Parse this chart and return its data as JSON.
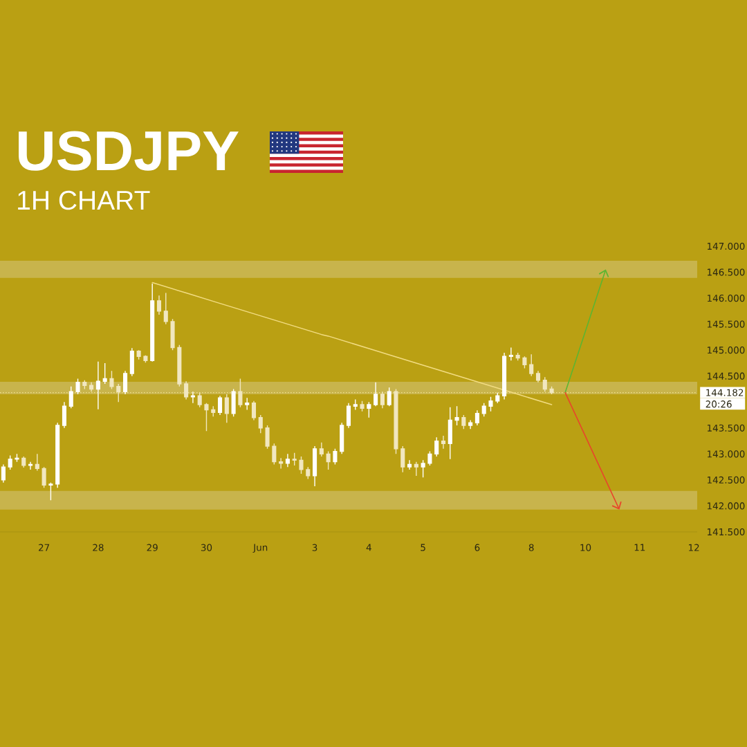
{
  "chart_data": {
    "type": "candlestick",
    "title": "USDJPY",
    "subtitle": "1H CHART",
    "categories": [
      null,
      null,
      null,
      null,
      null,
      null,
      "27",
      null,
      null,
      null,
      null,
      null,
      null,
      null,
      "28",
      null,
      null,
      null,
      null,
      null,
      null,
      null,
      "29",
      null,
      null,
      null,
      null,
      null,
      null,
      null,
      "30",
      null,
      null,
      null,
      null,
      null,
      null,
      null,
      "Jun",
      null,
      null,
      null,
      null,
      null,
      null,
      null,
      "3",
      null,
      null,
      null,
      null,
      null,
      null,
      null,
      "4",
      null,
      null,
      null,
      null,
      null,
      null,
      null,
      "5",
      null,
      null,
      null,
      null,
      null,
      null,
      null,
      "6",
      null,
      null,
      null,
      null,
      null,
      null,
      null,
      "8",
      null,
      null,
      null,
      null,
      null,
      null,
      null,
      "10",
      null,
      null,
      null,
      null,
      null,
      null,
      null,
      "11",
      null,
      null,
      null,
      null,
      null,
      null,
      null,
      "12"
    ],
    "ohlc": [
      [
        142.5,
        142.8,
        142.45,
        142.75
      ],
      [
        142.75,
        142.97,
        142.7,
        142.9
      ],
      [
        142.9,
        143.0,
        142.85,
        142.92
      ],
      [
        142.92,
        142.95,
        142.74,
        142.78
      ],
      [
        142.78,
        142.85,
        142.7,
        142.8
      ],
      [
        142.8,
        143.0,
        142.68,
        142.72
      ],
      [
        142.72,
        142.75,
        142.35,
        142.4
      ],
      [
        142.4,
        142.45,
        142.11,
        142.42
      ],
      [
        142.42,
        143.6,
        142.35,
        143.55
      ],
      [
        143.55,
        144.0,
        143.5,
        143.92
      ],
      [
        143.92,
        144.3,
        143.88,
        144.2
      ],
      [
        144.2,
        144.45,
        144.15,
        144.38
      ],
      [
        144.38,
        144.42,
        144.25,
        144.32
      ],
      [
        144.32,
        144.38,
        144.2,
        144.25
      ],
      [
        144.25,
        144.78,
        143.86,
        144.4
      ],
      [
        144.4,
        144.75,
        144.35,
        144.45
      ],
      [
        144.45,
        144.6,
        144.25,
        144.3
      ],
      [
        144.3,
        144.35,
        144.0,
        144.2
      ],
      [
        144.2,
        144.6,
        144.15,
        144.55
      ],
      [
        144.55,
        145.04,
        144.5,
        144.98
      ],
      [
        144.98,
        145.0,
        144.82,
        144.88
      ],
      [
        144.88,
        144.9,
        144.76,
        144.8
      ],
      [
        144.8,
        146.28,
        144.78,
        145.95
      ],
      [
        145.95,
        146.05,
        145.68,
        145.75
      ],
      [
        145.75,
        146.1,
        145.5,
        145.55
      ],
      [
        145.55,
        145.6,
        145.0,
        145.05
      ],
      [
        145.05,
        145.1,
        144.3,
        144.35
      ],
      [
        144.35,
        144.4,
        144.05,
        144.1
      ],
      [
        144.1,
        144.2,
        143.98,
        144.12
      ],
      [
        144.12,
        144.18,
        143.9,
        143.95
      ],
      [
        143.95,
        143.98,
        143.44,
        143.85
      ],
      [
        143.85,
        143.92,
        143.72,
        143.8
      ],
      [
        143.8,
        144.12,
        143.75,
        144.08
      ],
      [
        144.08,
        144.15,
        143.6,
        143.78
      ],
      [
        143.78,
        144.25,
        143.72,
        144.2
      ],
      [
        144.2,
        144.45,
        143.9,
        143.95
      ],
      [
        143.95,
        144.08,
        143.85,
        143.98
      ],
      [
        143.98,
        144.02,
        143.65,
        143.7
      ],
      [
        143.7,
        143.75,
        143.4,
        143.5
      ],
      [
        143.5,
        143.55,
        143.1,
        143.15
      ],
      [
        143.15,
        143.2,
        142.8,
        142.85
      ],
      [
        142.85,
        142.92,
        142.72,
        142.82
      ],
      [
        142.82,
        143.0,
        142.75,
        142.9
      ],
      [
        142.9,
        143.02,
        142.78,
        142.88
      ],
      [
        142.88,
        142.95,
        142.62,
        142.7
      ],
      [
        142.7,
        142.75,
        142.52,
        142.58
      ],
      [
        142.58,
        143.15,
        142.38,
        143.1
      ],
      [
        143.1,
        143.22,
        142.95,
        143.0
      ],
      [
        143.0,
        143.05,
        142.7,
        142.85
      ],
      [
        142.85,
        143.1,
        142.8,
        143.05
      ],
      [
        143.05,
        143.6,
        143.0,
        143.55
      ],
      [
        143.55,
        143.98,
        143.5,
        143.92
      ],
      [
        143.92,
        144.05,
        143.85,
        143.95
      ],
      [
        143.95,
        144.02,
        143.82,
        143.88
      ],
      [
        143.88,
        144.0,
        143.7,
        143.95
      ],
      [
        143.95,
        144.38,
        143.92,
        144.15
      ],
      [
        144.15,
        144.2,
        143.88,
        143.95
      ],
      [
        143.95,
        144.28,
        143.92,
        144.2
      ],
      [
        144.2,
        144.25,
        143.0,
        143.1
      ],
      [
        143.1,
        143.15,
        142.65,
        142.75
      ],
      [
        142.75,
        142.88,
        142.7,
        142.8
      ],
      [
        142.8,
        142.85,
        142.58,
        142.75
      ],
      [
        142.75,
        142.88,
        142.55,
        142.82
      ],
      [
        142.82,
        143.05,
        142.78,
        143.0
      ],
      [
        143.0,
        143.32,
        142.95,
        143.25
      ],
      [
        143.25,
        143.35,
        143.1,
        143.2
      ],
      [
        143.2,
        143.9,
        142.9,
        143.65
      ],
      [
        143.65,
        143.92,
        143.55,
        143.7
      ],
      [
        143.7,
        143.75,
        143.48,
        143.55
      ],
      [
        143.55,
        143.65,
        143.48,
        143.6
      ],
      [
        143.6,
        143.84,
        143.55,
        143.78
      ],
      [
        143.78,
        143.98,
        143.72,
        143.92
      ],
      [
        143.92,
        144.1,
        143.82,
        144.02
      ],
      [
        144.02,
        144.18,
        143.98,
        144.12
      ],
      [
        144.12,
        144.95,
        144.05,
        144.88
      ],
      [
        144.88,
        145.05,
        144.8,
        144.9
      ],
      [
        144.9,
        144.95,
        144.8,
        144.85
      ],
      [
        144.85,
        144.88,
        144.65,
        144.72
      ],
      [
        144.72,
        144.92,
        144.5,
        144.55
      ],
      [
        144.55,
        144.6,
        144.38,
        144.42
      ],
      [
        144.42,
        144.48,
        144.2,
        144.25
      ],
      [
        144.25,
        144.3,
        144.15,
        144.182
      ],
      null,
      null,
      null,
      null,
      null,
      null,
      null,
      null,
      null,
      null,
      null,
      null,
      null,
      null,
      null,
      null,
      null,
      null,
      null,
      null,
      null
    ],
    "colors": [
      "#ffffff",
      "#ffffff",
      "#ffffff",
      "#f1e7c0",
      "#ffffff",
      "#f1e7c0",
      "#f1e7c0",
      "#ffffff",
      "#ffffff",
      "#ffffff",
      "#ffffff",
      "#ffffff",
      "#f1e7c0",
      "#f1e7c0",
      "#ffffff",
      "#ffffff",
      "#f1e7c0",
      "#f1e7c0",
      "#ffffff",
      "#ffffff",
      "#f1e7c0",
      "#f1e7c0",
      "#ffffff",
      "#f1e7c0",
      "#f1e7c0",
      "#f1e7c0",
      "#f1e7c0",
      "#f1e7c0",
      "#ffffff",
      "#f1e7c0",
      "#f1e7c0",
      "#f1e7c0",
      "#ffffff",
      "#f1e7c0",
      "#ffffff",
      "#f1e7c0",
      "#ffffff",
      "#f1e7c0",
      "#f1e7c0",
      "#f1e7c0",
      "#f1e7c0",
      "#f1e7c0",
      "#ffffff",
      "#f1e7c0",
      "#f1e7c0",
      "#f1e7c0",
      "#ffffff",
      "#f1e7c0",
      "#f1e7c0",
      "#ffffff",
      "#ffffff",
      "#ffffff",
      "#ffffff",
      "#f1e7c0",
      "#ffffff",
      "#ffffff",
      "#f1e7c0",
      "#ffffff",
      "#f1e7c0",
      "#f1e7c0",
      "#ffffff",
      "#f1e7c0",
      "#ffffff",
      "#ffffff",
      "#ffffff",
      "#f1e7c0",
      "#ffffff",
      "#ffffff",
      "#f1e7c0",
      "#ffffff",
      "#ffffff",
      "#ffffff",
      "#ffffff",
      "#ffffff",
      "#ffffff",
      "#ffffff",
      "#f1e7c0",
      "#f1e7c0",
      "#f1e7c0",
      "#f1e7c0",
      "#f1e7c0",
      "#f1e7c0",
      null,
      null,
      null,
      null,
      null,
      null,
      null,
      null,
      null,
      null,
      null,
      null,
      null,
      null,
      null,
      null,
      null,
      null,
      null,
      null,
      null
    ],
    "series": [
      {
        "type": "line",
        "color": "#f2dc82",
        "values": [
          null,
          null,
          null,
          null,
          null,
          null,
          null,
          null,
          null,
          null,
          null,
          null,
          null,
          null,
          null,
          null,
          null,
          null,
          null,
          null,
          null,
          null,
          146.3,
          146.26,
          146.22,
          146.18,
          146.14,
          146.1,
          146.06,
          146.02,
          145.98,
          145.94,
          145.9,
          145.86,
          145.82,
          145.78,
          145.74,
          145.7,
          145.66,
          145.62,
          145.58,
          145.54,
          145.5,
          145.46,
          145.42,
          145.38,
          145.34,
          145.3,
          145.27,
          145.23,
          145.19,
          145.15,
          145.11,
          145.07,
          145.03,
          144.99,
          144.95,
          144.91,
          144.87,
          144.83,
          144.79,
          144.75,
          144.71,
          144.67,
          144.63,
          144.59,
          144.55,
          144.51,
          144.47,
          144.43,
          144.39,
          144.35,
          144.31,
          144.27,
          144.23,
          144.19,
          144.15,
          144.11,
          144.07,
          144.03,
          143.99,
          143.95,
          null,
          null,
          null,
          null,
          null,
          null,
          null,
          null,
          null,
          null,
          null,
          null,
          null,
          null,
          null,
          null,
          null,
          null,
          null,
          null,
          null
        ]
      }
    ],
    "ylim": [
      141.5,
      147
    ],
    "yticks": [
      {
        "value": 141.5,
        "label": "141.500"
      },
      {
        "value": 142,
        "label": "142.000"
      },
      {
        "value": 142.5,
        "label": "142.500"
      },
      {
        "value": 143,
        "label": "143.000"
      },
      {
        "value": 143.5,
        "label": "143.500"
      },
      {
        "value": 144.5,
        "label": "144.500"
      },
      {
        "value": 145,
        "label": "145.000"
      },
      {
        "value": 145.5,
        "label": "145.500"
      },
      {
        "value": 146,
        "label": "146.000"
      },
      {
        "value": 146.5,
        "label": "146.500"
      },
      {
        "value": 147,
        "label": "147.000"
      }
    ],
    "bands": [
      {
        "axis": "y",
        "from": 146.39,
        "to": 146.72,
        "color": "#c8b44c"
      },
      {
        "axis": "y",
        "from": 144.15,
        "to": 144.39,
        "color": "#c8b44c"
      },
      {
        "axis": "y",
        "from": 141.93,
        "to": 142.29,
        "color": "#c8b44c"
      }
    ],
    "ref_lines": [
      {
        "axis": "y",
        "value": 144.182,
        "label": "144.182",
        "color": "#efe08c",
        "line_style": "dotted"
      }
    ],
    "annotations": [
      "20:26"
    ]
  }
}
